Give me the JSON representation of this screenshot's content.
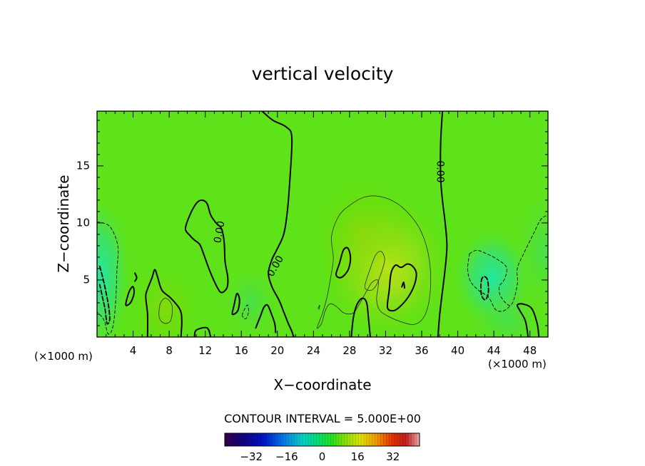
{
  "chart_data": {
    "type": "heatmap",
    "title": "vertical velocity",
    "xlabel": "X−coordinate",
    "ylabel": "Z−coordinate",
    "x_unit_left": "(×1000 m)",
    "x_unit_right": "(×1000 m)",
    "xlim": [
      0,
      50
    ],
    "ylim": [
      0,
      19.8
    ],
    "x_ticks": [
      4,
      8,
      12,
      16,
      20,
      24,
      28,
      32,
      36,
      40,
      44,
      48
    ],
    "y_ticks": [
      5,
      10,
      15
    ],
    "contour_interval_text": "CONTOUR INTERVAL = 5.000E+00",
    "contour_labels": [
      "0.00",
      "0.00",
      "0.00"
    ],
    "colorbar": {
      "ticks": [
        -32,
        -16,
        0,
        16,
        32
      ],
      "range": [
        -44,
        44
      ]
    },
    "zero_contours": [
      [
        [
          18.3,
          19.8
        ],
        [
          19.5,
          19.0
        ],
        [
          21.0,
          18.4
        ],
        [
          21.6,
          17.5
        ],
        [
          21.4,
          14
        ],
        [
          21.1,
          11
        ],
        [
          20.7,
          9
        ],
        [
          19.9,
          7.6
        ],
        [
          19.4,
          6.8
        ],
        [
          19.0,
          5.6
        ],
        [
          19.4,
          4.4
        ],
        [
          20.2,
          3.2
        ],
        [
          20.7,
          2.2
        ],
        [
          21.2,
          1.2
        ],
        [
          21.6,
          0.5
        ],
        [
          21.8,
          0
        ]
      ],
      [
        [
          38.3,
          19.8
        ],
        [
          38.1,
          17
        ],
        [
          38.1,
          14
        ],
        [
          38.3,
          12
        ],
        [
          38.6,
          10
        ],
        [
          38.8,
          8
        ],
        [
          38.6,
          6
        ],
        [
          38.3,
          4
        ],
        [
          38.0,
          2
        ],
        [
          37.8,
          0
        ]
      ],
      [
        [
          10.8,
          0
        ],
        [
          11.0,
          0.6
        ],
        [
          12.2,
          0.8
        ],
        [
          12.6,
          0
        ]
      ],
      [
        [
          5.6,
          0
        ],
        [
          5.6,
          2
        ],
        [
          5.4,
          3.6
        ],
        [
          5.7,
          4.4
        ],
        [
          6.1,
          5.2
        ],
        [
          6.4,
          5.9
        ],
        [
          6.7,
          5.3
        ],
        [
          7.2,
          4.1
        ],
        [
          8.2,
          3.4
        ],
        [
          9.2,
          2.4
        ],
        [
          9.4,
          1.4
        ],
        [
          9.3,
          0
        ]
      ],
      [
        [
          9.8,
          9.5
        ],
        [
          10.3,
          10.7
        ],
        [
          11.0,
          11.7
        ],
        [
          11.6,
          12.0
        ],
        [
          12.2,
          11.7
        ],
        [
          12.6,
          10.7
        ],
        [
          13.2,
          10.0
        ],
        [
          13.8,
          9.5
        ],
        [
          14.1,
          8.3
        ],
        [
          14.2,
          6.6
        ],
        [
          14.5,
          5.2
        ],
        [
          14.4,
          4.3
        ],
        [
          13.8,
          3.9
        ],
        [
          13.3,
          4.4
        ],
        [
          12.5,
          5.8
        ],
        [
          11.9,
          7.1
        ],
        [
          11.4,
          8.1
        ],
        [
          10.8,
          8.5
        ],
        [
          10.3,
          8.9
        ],
        [
          9.8,
          9.5
        ]
      ],
      [
        [
          17.6,
          0.8
        ],
        [
          18.1,
          1.8
        ],
        [
          18.5,
          2.6
        ],
        [
          18.9,
          2.8
        ],
        [
          19.3,
          2.1
        ],
        [
          19.7,
          1.2
        ],
        [
          19.8,
          0.4
        ]
      ],
      [
        [
          15.0,
          2.0
        ],
        [
          15.2,
          2.8
        ],
        [
          15.5,
          3.8
        ],
        [
          15.8,
          3.3
        ],
        [
          15.6,
          2.3
        ],
        [
          15.0,
          2.0
        ]
      ],
      [
        [
          3.2,
          2.8
        ],
        [
          3.4,
          3.6
        ],
        [
          3.7,
          4.2
        ],
        [
          4.0,
          4.4
        ],
        [
          4.1,
          3.8
        ],
        [
          3.7,
          3.0
        ],
        [
          3.2,
          2.8
        ]
      ],
      [
        [
          4.2,
          4.9
        ],
        [
          4.4,
          5.2
        ],
        [
          4.2,
          5.6
        ]
      ],
      [
        [
          28.2,
          0
        ],
        [
          28.4,
          1.6
        ],
        [
          28.8,
          2.8
        ],
        [
          29.4,
          3.4
        ],
        [
          29.9,
          3.0
        ],
        [
          30.1,
          1.6
        ],
        [
          30.3,
          0
        ]
      ],
      [
        [
          26.5,
          5.5
        ],
        [
          26.9,
          6.5
        ],
        [
          27.3,
          7.6
        ],
        [
          27.8,
          7.8
        ],
        [
          28.1,
          7.0
        ],
        [
          27.9,
          6.0
        ],
        [
          27.4,
          5.4
        ],
        [
          26.9,
          5.2
        ],
        [
          26.5,
          5.5
        ]
      ],
      [
        [
          32.2,
          2.6
        ],
        [
          32.4,
          4.1
        ],
        [
          32.6,
          5.6
        ],
        [
          33.1,
          6.3
        ],
        [
          33.7,
          6.1
        ],
        [
          34.4,
          6.4
        ],
        [
          35.0,
          6.2
        ],
        [
          35.4,
          5.6
        ],
        [
          35.2,
          4.6
        ],
        [
          34.5,
          3.5
        ],
        [
          33.5,
          2.6
        ],
        [
          32.8,
          2.3
        ],
        [
          32.2,
          2.6
        ]
      ],
      [
        [
          33.8,
          4.4
        ],
        [
          34.0,
          4.8
        ],
        [
          34.1,
          4.3
        ]
      ],
      [
        [
          47.8,
          0
        ],
        [
          47.5,
          1.4
        ],
        [
          46.9,
          2.3
        ],
        [
          46.6,
          2.8
        ],
        [
          47.2,
          2.9
        ],
        [
          48.2,
          2.5
        ],
        [
          48.8,
          1.2
        ],
        [
          49.0,
          0
        ]
      ]
    ],
    "positive_contours_5": [
      [
        [
          24.4,
          0.8
        ],
        [
          25.0,
          2.1
        ],
        [
          25.5,
          3.5
        ],
        [
          25.9,
          5.2
        ],
        [
          26.2,
          6.9
        ],
        [
          26.0,
          8.8
        ],
        [
          26.8,
          10.6
        ],
        [
          28.1,
          11.6
        ],
        [
          29.8,
          12.3
        ],
        [
          31.5,
          12.3
        ],
        [
          33.3,
          11.7
        ],
        [
          34.8,
          10.6
        ],
        [
          35.9,
          9.3
        ],
        [
          36.7,
          7.4
        ],
        [
          37.0,
          5.2
        ],
        [
          36.8,
          3.1
        ],
        [
          36.2,
          1.7
        ],
        [
          35.1,
          1.1
        ],
        [
          33.5,
          1.4
        ],
        [
          32.1,
          1.9
        ],
        [
          31.3,
          2.4
        ],
        [
          31.0,
          3.3
        ],
        [
          31.2,
          4.9
        ],
        [
          30.5,
          4.8
        ],
        [
          29.8,
          3.9
        ],
        [
          29.1,
          2.9
        ],
        [
          28.4,
          2.1
        ],
        [
          27.4,
          2.1
        ],
        [
          26.5,
          2.7
        ],
        [
          25.8,
          2.9
        ],
        [
          25.3,
          2.3
        ],
        [
          24.9,
          1.2
        ],
        [
          24.4,
          0.8
        ]
      ],
      [
        [
          6.9,
          1.7
        ],
        [
          7.0,
          2.9
        ],
        [
          7.6,
          3.4
        ],
        [
          8.3,
          2.8
        ],
        [
          8.2,
          1.5
        ],
        [
          7.5,
          1.2
        ],
        [
          6.9,
          1.7
        ]
      ],
      [
        [
          29.7,
          4.4
        ],
        [
          30.3,
          6.0
        ],
        [
          30.9,
          7.2
        ],
        [
          31.5,
          7.5
        ],
        [
          31.9,
          6.8
        ],
        [
          31.5,
          5.6
        ],
        [
          31.0,
          4.6
        ],
        [
          30.4,
          4.1
        ],
        [
          29.7,
          4.4
        ]
      ],
      [
        [
          24.5,
          2.5
        ],
        [
          24.7,
          2.8
        ],
        [
          24.6,
          2.4
        ]
      ]
    ],
    "negative_contours_5": [
      [
        [
          0,
          10.1
        ],
        [
          1.4,
          9.7
        ],
        [
          2.3,
          8.0
        ],
        [
          2.2,
          5.8
        ],
        [
          2.1,
          3.6
        ],
        [
          1.9,
          1.6
        ],
        [
          1.6,
          0.5
        ],
        [
          1.2,
          0.3
        ],
        [
          0.9,
          1.2
        ],
        [
          0.6,
          1.7
        ],
        [
          0,
          2.2
        ]
      ],
      [
        [
          16.1,
          1.9
        ],
        [
          16.4,
          2.5
        ],
        [
          16.7,
          2.8
        ],
        [
          16.8,
          2.2
        ],
        [
          16.5,
          1.6
        ],
        [
          16.1,
          1.9
        ]
      ],
      [
        [
          41.3,
          7.3
        ],
        [
          42.1,
          7.6
        ],
        [
          43.2,
          7.3
        ],
        [
          44.4,
          6.8
        ],
        [
          45.4,
          6.1
        ],
        [
          45.2,
          5.1
        ],
        [
          44.6,
          4.4
        ],
        [
          44.8,
          3.5
        ],
        [
          45.9,
          2.8
        ],
        [
          46.6,
          4.6
        ],
        [
          46.6,
          6.0
        ],
        [
          47.3,
          7.3
        ],
        [
          48.3,
          8.9
        ],
        [
          49.2,
          10.3
        ],
        [
          50,
          10.7
        ]
      ],
      [
        [
          41.3,
          7.3
        ],
        [
          41.1,
          6.0
        ],
        [
          41.4,
          4.9
        ],
        [
          42.3,
          4.1
        ],
        [
          43.4,
          3.5
        ],
        [
          44.2,
          2.4
        ],
        [
          45.1,
          2.3
        ],
        [
          45.9,
          2.8
        ]
      ]
    ],
    "negative_contours_10": [
      [
        [
          0.3,
          6.2
        ],
        [
          0.7,
          5.0
        ],
        [
          1.0,
          3.9
        ],
        [
          1.3,
          2.6
        ],
        [
          1.4,
          1.5
        ],
        [
          1.1,
          1.2
        ],
        [
          0.9,
          2.4
        ],
        [
          0.6,
          3.5
        ],
        [
          0.3,
          4.6
        ]
      ],
      [
        [
          42.6,
          4.9
        ],
        [
          42.9,
          5.3
        ],
        [
          43.3,
          5.0
        ],
        [
          43.4,
          4.0
        ],
        [
          43.2,
          3.4
        ],
        [
          42.9,
          3.3
        ],
        [
          42.6,
          3.8
        ],
        [
          42.6,
          4.9
        ]
      ]
    ]
  }
}
